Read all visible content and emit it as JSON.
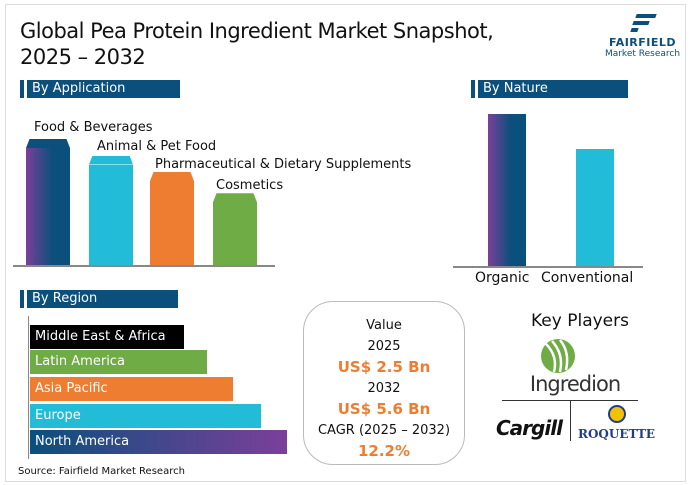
{
  "title_line1": "Global Pea Protein Ingredient Market Snapshot,",
  "title_line2": "2025 – 2032",
  "logo": {
    "name": "FAIRFIELD",
    "sub": "Market Research"
  },
  "chart_data": [
    {
      "type": "bar",
      "title": "By Application",
      "categories": [
        "Food & Beverages",
        "Animal & Pet Food",
        "Pharmaceutical & Dietary Supplements",
        "Cosmetics"
      ],
      "values": [
        100,
        86,
        72,
        54
      ],
      "colors": [
        "#0b4f7c",
        "#22bcd8",
        "#ee7d31",
        "#6fac46"
      ]
    },
    {
      "type": "bar",
      "title": "By Nature",
      "categories": [
        "Organic",
        "Conventional"
      ],
      "values": [
        100,
        77
      ],
      "colors": [
        "#0b4f7c",
        "#22bcd8"
      ]
    },
    {
      "type": "bar",
      "orientation": "horizontal",
      "title": "By Region",
      "categories": [
        "Middle East & Africa",
        "Latin America",
        "Asia Pacific",
        "Europe",
        "North America"
      ],
      "values": [
        60,
        69,
        79,
        90,
        100
      ],
      "colors": [
        "#000000",
        "#6fac46",
        "#ee7d31",
        "#22bcd8",
        "#0b4f7c"
      ]
    }
  ],
  "value_box": {
    "label": "Value",
    "year1": "2025",
    "value1": "US$ 2.5 Bn",
    "year2": "2032",
    "value2": "US$ 5.6 Bn",
    "cagr_label": "CAGR (2025 – 2032)",
    "cagr": "12.2%"
  },
  "key_players": {
    "title": "Key Players",
    "companies": [
      "Ingredion",
      "Cargill",
      "ROQUETTE"
    ]
  },
  "source": "Source: Fairfield Market Research"
}
